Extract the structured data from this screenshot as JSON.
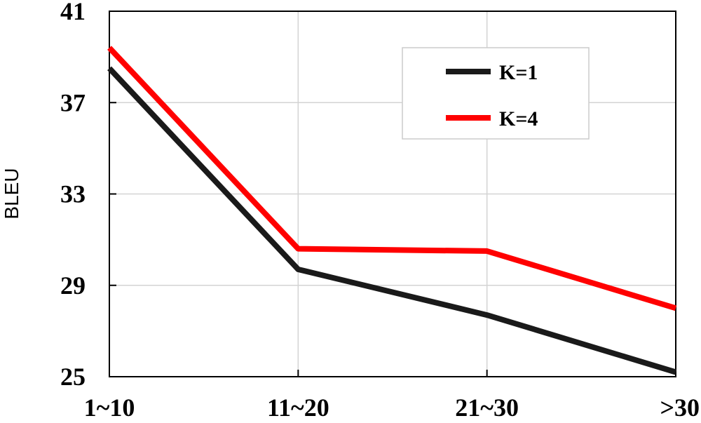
{
  "chart_data": {
    "type": "line",
    "categories": [
      "1~10",
      "11~20",
      "21~30",
      ">30"
    ],
    "series": [
      {
        "name": "K=1",
        "values": [
          38.5,
          29.7,
          27.7,
          25.2
        ],
        "color": "#1a1a1a"
      },
      {
        "name": "K=4",
        "values": [
          39.4,
          30.6,
          30.5,
          28.0
        ],
        "color": "#ff0000"
      }
    ],
    "ylabel": "BLEU",
    "xlabel": "",
    "ylim": [
      25,
      41
    ],
    "yticks": [
      25,
      29,
      33,
      37,
      41
    ],
    "grid": true,
    "legend_position": "top-right"
  }
}
